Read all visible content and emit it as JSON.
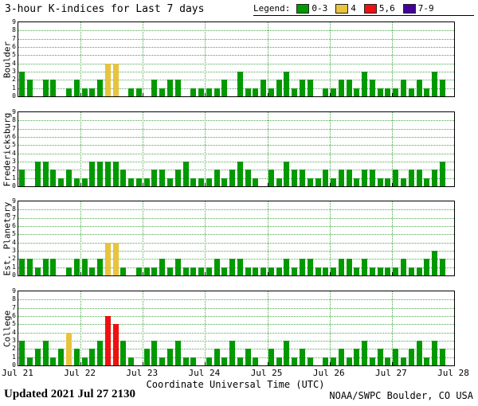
{
  "title": "3-hour K-indices for Last 7 days",
  "legend": {
    "label": "Legend:",
    "items": [
      {
        "label": "0-3",
        "color": "#009900"
      },
      {
        "label": "4",
        "color": "#e8c33e"
      },
      {
        "label": "5,6",
        "color": "#ee1111"
      },
      {
        "label": "7-9",
        "color": "#440099"
      }
    ]
  },
  "footer": {
    "updated": "Updated 2021 Jul 27 2130",
    "source": "NOAA/SWPC Boulder, CO USA"
  },
  "chart_data": {
    "type": "bar",
    "title": "3-hour K-indices for Last 7 days",
    "xlabel": "Coordinate Universal Time (UTC)",
    "x_tick_labels": [
      "Jul 21",
      "Jul 22",
      "Jul 23",
      "Jul 24",
      "Jul 25",
      "Jul 26",
      "Jul 27",
      "Jul 28"
    ],
    "ylim": [
      0,
      9
    ],
    "y_tick_labels": [
      0,
      1,
      2,
      3,
      4,
      5,
      6,
      7,
      8,
      9
    ],
    "bins_per_day": 8,
    "bin_hours": 3,
    "grid": true,
    "legend_position": "top-right",
    "colors": {
      "0-3": "#009900",
      "4": "#e8c33e",
      "5,6": "#ee1111",
      "7-9": "#440099"
    },
    "panels": [
      {
        "station": "Boulder",
        "values": [
          3,
          2,
          0,
          2,
          2,
          0,
          1,
          2,
          1,
          1,
          2,
          4,
          4,
          0,
          1,
          1,
          0,
          2,
          1,
          2,
          2,
          0,
          1,
          1,
          1,
          1,
          2,
          0,
          3,
          1,
          1,
          2,
          1,
          2,
          3,
          1,
          2,
          2,
          0,
          1,
          1,
          2,
          2,
          1,
          3,
          2,
          1,
          1,
          1,
          2,
          1,
          2,
          1,
          3,
          2
        ]
      },
      {
        "station": "Fredericksburg",
        "values": [
          2,
          0,
          3,
          3,
          2,
          1,
          2,
          1,
          1,
          3,
          3,
          3,
          3,
          2,
          1,
          1,
          1,
          2,
          2,
          1,
          2,
          3,
          1,
          1,
          1,
          2,
          1,
          2,
          3,
          2,
          1,
          0,
          2,
          1,
          3,
          2,
          2,
          1,
          1,
          2,
          1,
          2,
          2,
          1,
          2,
          2,
          1,
          1,
          2,
          1,
          2,
          2,
          1,
          2,
          3
        ]
      },
      {
        "station": "Est. Planetary",
        "values": [
          2,
          2,
          1,
          2,
          2,
          0,
          1,
          2,
          2,
          1,
          2,
          4,
          4,
          1,
          0,
          1,
          1,
          1,
          2,
          1,
          2,
          1,
          1,
          1,
          1,
          2,
          1,
          2,
          2,
          1,
          1,
          1,
          1,
          1,
          2,
          1,
          2,
          2,
          1,
          1,
          1,
          2,
          2,
          1,
          2,
          1,
          1,
          1,
          1,
          2,
          1,
          1,
          2,
          3,
          2
        ]
      },
      {
        "station": "College",
        "values": [
          3,
          1,
          2,
          3,
          1,
          2,
          4,
          2,
          1,
          2,
          3,
          6,
          5,
          3,
          1,
          0,
          2,
          3,
          1,
          2,
          3,
          1,
          1,
          0,
          1,
          2,
          1,
          3,
          1,
          2,
          1,
          0,
          2,
          1,
          3,
          1,
          2,
          1,
          0,
          1,
          1,
          2,
          1,
          2,
          3,
          1,
          2,
          1,
          2,
          1,
          2,
          3,
          1,
          3,
          2
        ]
      }
    ]
  }
}
